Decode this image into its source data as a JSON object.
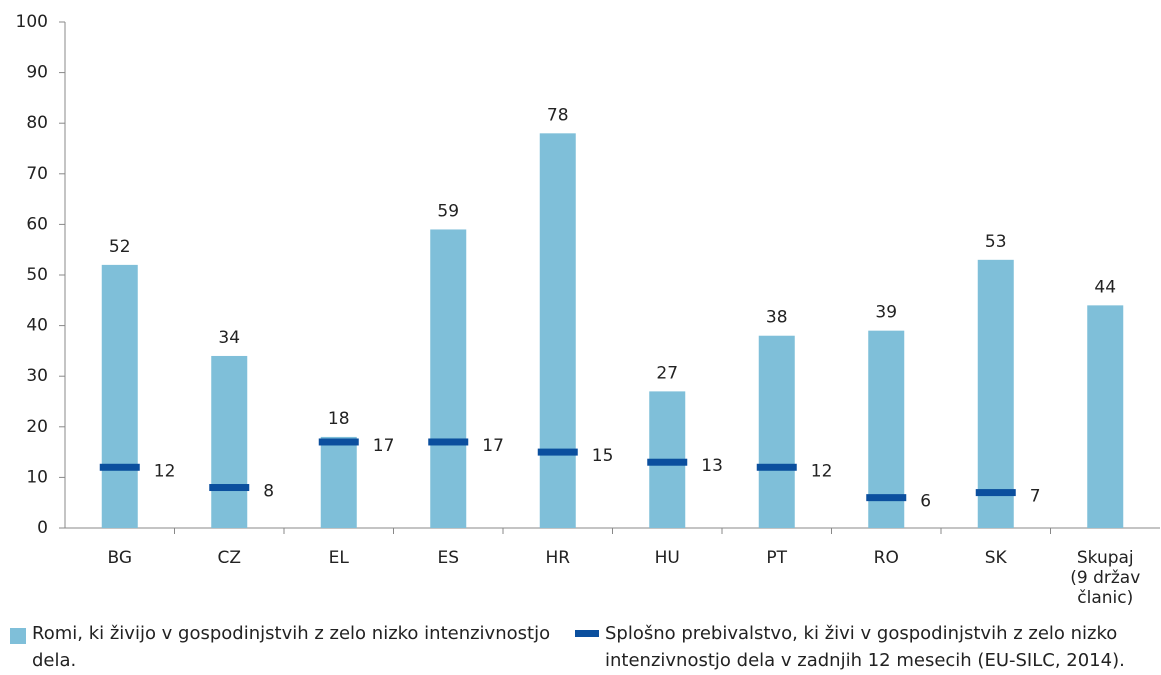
{
  "chart_data": {
    "type": "bar",
    "categories": [
      "BG",
      "CZ",
      "EL",
      "ES",
      "HR",
      "HU",
      "PT",
      "RO",
      "SK",
      "Skupaj (9 držav članic)"
    ],
    "series": [
      {
        "name": "Romi, ki živijo v gospodinjstvih z zelo nizko intenzivnostjo dela.",
        "type": "bar",
        "color": "#7fbfd9",
        "values": [
          52,
          34,
          18,
          59,
          78,
          27,
          38,
          39,
          53,
          44
        ]
      },
      {
        "name": "Splošno prebivalstvo, ki živi v gospodinjstvih z zelo nizko intenzivnostjo dela v zadnjih 12 mesecih (EU-SILC, 2014).",
        "type": "marker",
        "color": "#0b4f9e",
        "values": [
          12,
          8,
          17,
          17,
          15,
          13,
          12,
          6,
          7,
          null
        ]
      }
    ],
    "ylim": [
      0,
      100
    ],
    "yticks": [
      0,
      10,
      20,
      30,
      40,
      50,
      60,
      70,
      80,
      90,
      100
    ],
    "grid": false
  }
}
